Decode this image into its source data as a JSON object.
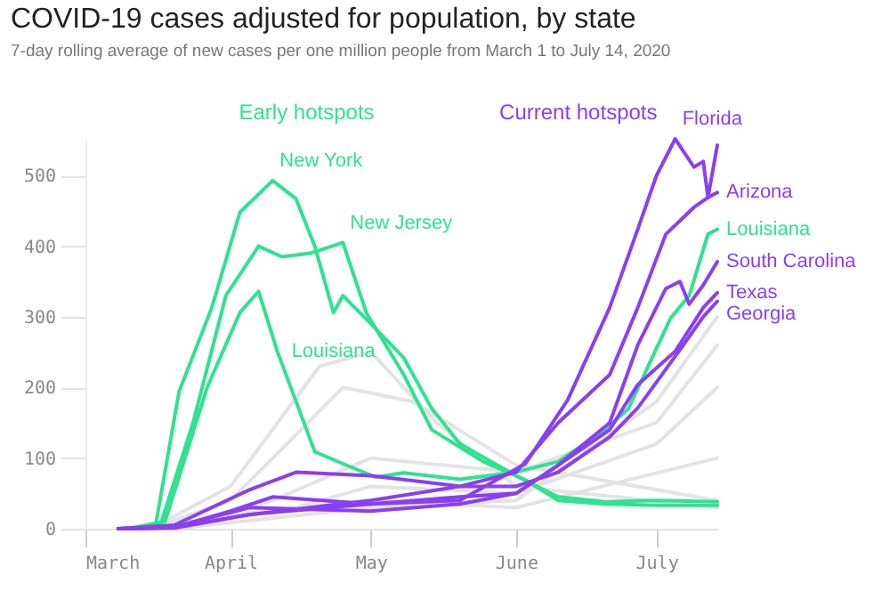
{
  "chart_data": {
    "type": "line",
    "title": "COVID-19 cases adjusted for population, by state",
    "subtitle": "7-day rolling average of new cases per one million people from March 1 to July 14, 2020",
    "xlim": [
      "2020-03-01",
      "2020-07-14"
    ],
    "xticks": [
      {
        "value": "2020-03-01",
        "label": "March"
      },
      {
        "value": "2020-04-01",
        "label": "April"
      },
      {
        "value": "2020-05-01",
        "label": "May"
      },
      {
        "value": "2020-06-01",
        "label": "June"
      },
      {
        "value": "2020-07-01",
        "label": "July"
      }
    ],
    "ylim": [
      0,
      552
    ],
    "yticks": [
      0,
      100,
      200,
      300,
      400,
      500
    ],
    "series": [
      {
        "color": "#e3e3e3",
        "x": [
          "2020-03-15",
          "2020-04-01",
          "2020-04-20",
          "2020-05-01",
          "2020-05-15",
          "2020-06-01",
          "2020-07-14"
        ],
        "values": [
          0,
          60,
          230,
          250,
          150,
          60,
          30
        ]
      },
      {
        "color": "#e3e3e3",
        "x": [
          "2020-03-15",
          "2020-04-01",
          "2020-04-25",
          "2020-05-10",
          "2020-06-01",
          "2020-07-14"
        ],
        "values": [
          0,
          40,
          200,
          180,
          90,
          40
        ]
      },
      {
        "color": "#e3e3e3",
        "x": [
          "2020-03-20",
          "2020-04-10",
          "2020-05-01",
          "2020-06-01",
          "2020-07-01",
          "2020-07-14"
        ],
        "values": [
          0,
          40,
          100,
          80,
          150,
          260
        ]
      },
      {
        "color": "#e3e3e3",
        "x": [
          "2020-03-20",
          "2020-05-01",
          "2020-06-01",
          "2020-07-01",
          "2020-07-14"
        ],
        "values": [
          0,
          30,
          40,
          180,
          300
        ]
      },
      {
        "color": "#e3e3e3",
        "x": [
          "2020-03-15",
          "2020-04-01",
          "2020-05-01",
          "2020-06-01",
          "2020-07-14"
        ],
        "values": [
          0,
          20,
          40,
          30,
          100
        ]
      },
      {
        "color": "#e3e3e3",
        "x": [
          "2020-03-20",
          "2020-04-15",
          "2020-05-01",
          "2020-06-01",
          "2020-07-01",
          "2020-07-14"
        ],
        "values": [
          0,
          30,
          60,
          50,
          120,
          200
        ]
      },
      {
        "name": "New York",
        "color": "#2fe28f",
        "x": [
          "2020-03-10",
          "2020-03-16",
          "2020-03-21",
          "2020-03-28",
          "2020-04-03",
          "2020-04-10",
          "2020-04-15",
          "2020-04-19",
          "2020-04-21",
          "2020-04-23",
          "2020-04-25",
          "2020-05-01",
          "2020-05-08",
          "2020-05-14",
          "2020-05-20",
          "2020-06-01",
          "2020-06-10",
          "2020-06-20",
          "2020-07-01",
          "2020-07-14"
        ],
        "values": [
          0,
          5,
          194,
          313,
          448,
          493,
          467,
          400,
          353,
          306,
          330,
          290,
          242,
          170,
          120,
          75,
          45,
          38,
          40,
          38
        ]
      },
      {
        "name": "New Jersey",
        "color": "#2fe28f",
        "x": [
          "2020-03-10",
          "2020-03-17",
          "2020-03-24",
          "2020-03-31",
          "2020-04-07",
          "2020-04-12",
          "2020-04-18",
          "2020-04-25",
          "2020-04-30",
          "2020-05-08",
          "2020-05-14",
          "2020-05-25",
          "2020-06-03",
          "2020-06-10",
          "2020-06-20",
          "2020-07-01",
          "2020-07-14"
        ],
        "values": [
          0,
          5,
          150,
          330,
          400,
          385,
          390,
          405,
          306,
          218,
          140,
          95,
          69,
          40,
          35,
          33,
          33
        ]
      },
      {
        "name": "Louisiana",
        "color": "#2fe28f",
        "x": [
          "2020-03-10",
          "2020-03-18",
          "2020-03-27",
          "2020-04-03",
          "2020-04-07",
          "2020-04-11",
          "2020-04-15",
          "2020-04-19",
          "2020-04-25",
          "2020-05-02",
          "2020-05-08",
          "2020-05-20",
          "2020-06-01",
          "2020-06-10",
          "2020-06-20",
          "2020-06-25",
          "2020-07-04",
          "2020-07-08",
          "2020-07-12",
          "2020-07-14"
        ],
        "values": [
          0,
          10,
          200,
          306,
          336,
          251,
          180,
          109,
          92,
          73,
          79,
          70,
          80,
          95,
          140,
          170,
          298,
          330,
          417,
          424
        ]
      },
      {
        "name": "Florida",
        "color": "#8a3ff0",
        "x": [
          "2020-03-08",
          "2020-03-20",
          "2020-04-01",
          "2020-04-10",
          "2020-05-01",
          "2020-05-20",
          "2020-06-03",
          "2020-06-12",
          "2020-06-21",
          "2020-06-27",
          "2020-07-01",
          "2020-07-05",
          "2020-07-09",
          "2020-07-11",
          "2020-07-12",
          "2020-07-14"
        ],
        "values": [
          0,
          2,
          25,
          45,
          35,
          40,
          92,
          182,
          313,
          424,
          500,
          552,
          512,
          520,
          469,
          543
        ]
      },
      {
        "name": "Arizona",
        "color": "#8a3ff0",
        "x": [
          "2020-03-08",
          "2020-03-20",
          "2020-04-05",
          "2020-05-01",
          "2020-05-20",
          "2020-06-01",
          "2020-06-10",
          "2020-06-21",
          "2020-06-27",
          "2020-07-03",
          "2020-07-09",
          "2020-07-12",
          "2020-07-14"
        ],
        "values": [
          0,
          2,
          20,
          40,
          60,
          80,
          150,
          218,
          313,
          417,
          455,
          469,
          476
        ]
      },
      {
        "name": "South Carolina",
        "color": "#8a3ff0",
        "x": [
          "2020-03-08",
          "2020-03-20",
          "2020-04-05",
          "2020-05-01",
          "2020-05-20",
          "2020-06-01",
          "2020-06-10",
          "2020-06-21",
          "2020-06-27",
          "2020-07-03",
          "2020-07-06",
          "2020-07-08",
          "2020-07-11",
          "2020-07-14"
        ],
        "values": [
          0,
          2,
          30,
          25,
          35,
          50,
          90,
          150,
          260,
          340,
          350,
          318,
          345,
          378
        ]
      },
      {
        "name": "Texas",
        "color": "#8a3ff0",
        "x": [
          "2020-03-08",
          "2020-03-20",
          "2020-04-05",
          "2020-05-01",
          "2020-05-20",
          "2020-06-01",
          "2020-06-10",
          "2020-06-21",
          "2020-06-27",
          "2020-07-05",
          "2020-07-11",
          "2020-07-14"
        ],
        "values": [
          0,
          1,
          20,
          35,
          45,
          50,
          90,
          140,
          204,
          251,
          313,
          334
        ]
      },
      {
        "name": "Georgia",
        "color": "#8a3ff0",
        "x": [
          "2020-03-08",
          "2020-03-20",
          "2020-04-05",
          "2020-04-15",
          "2020-05-01",
          "2020-05-20",
          "2020-06-01",
          "2020-06-10",
          "2020-06-21",
          "2020-06-27",
          "2020-07-05",
          "2020-07-11",
          "2020-07-14"
        ],
        "values": [
          0,
          5,
          55,
          80,
          75,
          60,
          60,
          80,
          130,
          171,
          244,
          300,
          322
        ]
      }
    ],
    "annotations": [
      "Early hotspots",
      "Current hotspots",
      {
        "text": "Louisiana",
        "x": "2020-04-11",
        "y": 251
      }
    ]
  }
}
